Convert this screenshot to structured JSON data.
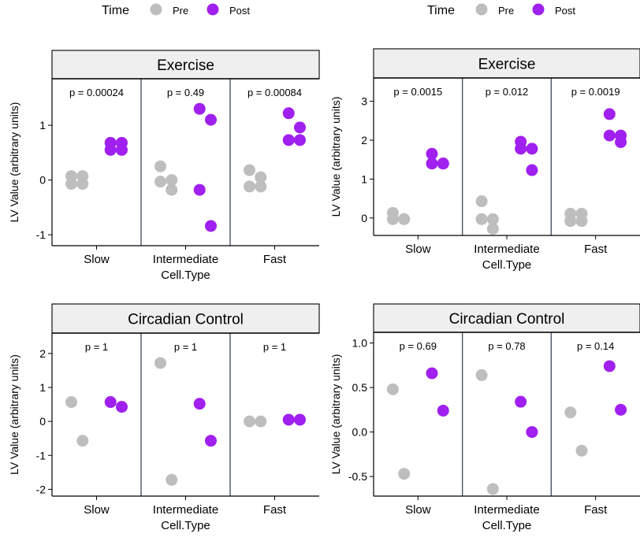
{
  "colors": {
    "pre": "#bebebe",
    "post": "#a020f0",
    "strip_fill": "#efefef",
    "divider": "#4a5568"
  },
  "chart_data": [
    {
      "type": "scatter",
      "title": "Exercise",
      "xlabel": "Cell.Type",
      "ylabel": "LV Value (arbitrary units)",
      "legend_title": "Time",
      "legend_labels": [
        "Pre",
        "Post"
      ],
      "legend_position": "top",
      "categories": [
        "Slow",
        "Intermediate",
        "Fast"
      ],
      "yticks": [
        "-1",
        "0",
        "1"
      ],
      "ytick_values": [
        -1,
        0,
        1
      ],
      "ylim": [
        -1.2,
        1.85
      ],
      "pvalues": [
        "p = 0.00024",
        "p = 0.49",
        "p = 0.00084"
      ],
      "series": [
        {
          "name": "Pre",
          "points": [
            {
              "x": "Slow",
              "y": 0.07
            },
            {
              "x": "Slow",
              "y": 0.07
            },
            {
              "x": "Slow",
              "y": -0.07
            },
            {
              "x": "Slow",
              "y": -0.07
            },
            {
              "x": "Intermediate",
              "y": 0.25
            },
            {
              "x": "Intermediate",
              "y": 0.0
            },
            {
              "x": "Intermediate",
              "y": -0.03
            },
            {
              "x": "Intermediate",
              "y": -0.18
            },
            {
              "x": "Fast",
              "y": 0.18
            },
            {
              "x": "Fast",
              "y": 0.05
            },
            {
              "x": "Fast",
              "y": -0.12
            },
            {
              "x": "Fast",
              "y": -0.12
            }
          ]
        },
        {
          "name": "Post",
          "points": [
            {
              "x": "Slow",
              "y": 0.68
            },
            {
              "x": "Slow",
              "y": 0.68
            },
            {
              "x": "Slow",
              "y": 0.55
            },
            {
              "x": "Slow",
              "y": 0.55
            },
            {
              "x": "Intermediate",
              "y": 1.3
            },
            {
              "x": "Intermediate",
              "y": 1.1
            },
            {
              "x": "Intermediate",
              "y": -0.18
            },
            {
              "x": "Intermediate",
              "y": -0.84
            },
            {
              "x": "Fast",
              "y": 1.22
            },
            {
              "x": "Fast",
              "y": 0.96
            },
            {
              "x": "Fast",
              "y": 0.73
            },
            {
              "x": "Fast",
              "y": 0.73
            }
          ]
        }
      ]
    },
    {
      "type": "scatter",
      "title": "Exercise",
      "xlabel": "Cell.Type",
      "ylabel": "LV Value (arbitrary units)",
      "legend_title": "Time",
      "legend_labels": [
        "Pre",
        "Post"
      ],
      "legend_position": "top",
      "categories": [
        "Slow",
        "Intermediate",
        "Fast"
      ],
      "yticks": [
        "0",
        "1",
        "2",
        "3"
      ],
      "ytick_values": [
        0,
        1,
        2,
        3
      ],
      "ylim": [
        -0.45,
        3.6
      ],
      "pvalues": [
        "p = 0.0015",
        "p = 0.012",
        "p = 0.0019"
      ],
      "series": [
        {
          "name": "Pre",
          "points": [
            {
              "x": "Slow",
              "y": 0.13
            },
            {
              "x": "Slow",
              "y": -0.03
            },
            {
              "x": "Slow",
              "y": -0.03
            },
            {
              "x": "Slow",
              "y": -0.03
            },
            {
              "x": "Intermediate",
              "y": 0.43
            },
            {
              "x": "Intermediate",
              "y": -0.03
            },
            {
              "x": "Intermediate",
              "y": -0.03
            },
            {
              "x": "Intermediate",
              "y": -0.28
            },
            {
              "x": "Fast",
              "y": 0.11
            },
            {
              "x": "Fast",
              "y": 0.11
            },
            {
              "x": "Fast",
              "y": -0.08
            },
            {
              "x": "Fast",
              "y": -0.08
            }
          ]
        },
        {
          "name": "Post",
          "points": [
            {
              "x": "Slow",
              "y": 1.65
            },
            {
              "x": "Slow",
              "y": 1.4
            },
            {
              "x": "Slow",
              "y": 1.4
            },
            {
              "x": "Slow",
              "y": 1.4
            },
            {
              "x": "Intermediate",
              "y": 1.96
            },
            {
              "x": "Intermediate",
              "y": 1.78
            },
            {
              "x": "Intermediate",
              "y": 1.78
            },
            {
              "x": "Intermediate",
              "y": 1.23
            },
            {
              "x": "Fast",
              "y": 2.67
            },
            {
              "x": "Fast",
              "y": 2.12
            },
            {
              "x": "Fast",
              "y": 2.12
            },
            {
              "x": "Fast",
              "y": 1.95
            }
          ]
        }
      ]
    },
    {
      "type": "scatter",
      "title": "Circadian Control",
      "xlabel": "Cell.Type",
      "ylabel": "LV Value (arbitrary units)",
      "categories": [
        "Slow",
        "Intermediate",
        "Fast"
      ],
      "yticks": [
        "-2",
        "-1",
        "0",
        "1",
        "2"
      ],
      "ytick_values": [
        -2,
        -1,
        0,
        1,
        2
      ],
      "ylim": [
        -2.2,
        2.6
      ],
      "pvalues": [
        "p = 1",
        "p = 1",
        "p = 1"
      ],
      "series": [
        {
          "name": "Pre",
          "points": [
            {
              "x": "Slow",
              "y": 0.57
            },
            {
              "x": "Slow",
              "y": -0.57
            },
            {
              "x": "Intermediate",
              "y": 1.72
            },
            {
              "x": "Intermediate",
              "y": -1.72
            },
            {
              "x": "Fast",
              "y": 0.0
            },
            {
              "x": "Fast",
              "y": 0.0
            }
          ]
        },
        {
          "name": "Post",
          "points": [
            {
              "x": "Slow",
              "y": 0.57
            },
            {
              "x": "Slow",
              "y": 0.43
            },
            {
              "x": "Intermediate",
              "y": 0.52
            },
            {
              "x": "Intermediate",
              "y": -0.57
            },
            {
              "x": "Fast",
              "y": 0.05
            },
            {
              "x": "Fast",
              "y": 0.05
            }
          ]
        }
      ]
    },
    {
      "type": "scatter",
      "title": "Circadian Control",
      "xlabel": "Cell.Type",
      "ylabel": "LV Value (arbitrary units)",
      "categories": [
        "Slow",
        "Intermediate",
        "Fast"
      ],
      "yticks": [
        "-0.5",
        "0.0",
        "0.5",
        "1.0"
      ],
      "ytick_values": [
        -0.5,
        0.0,
        0.5,
        1.0
      ],
      "ylim": [
        -0.72,
        1.12
      ],
      "pvalues": [
        "p = 0.69",
        "p = 0.78",
        "p = 0.14"
      ],
      "series": [
        {
          "name": "Pre",
          "points": [
            {
              "x": "Slow",
              "y": 0.48
            },
            {
              "x": "Slow",
              "y": -0.47
            },
            {
              "x": "Intermediate",
              "y": 0.64
            },
            {
              "x": "Intermediate",
              "y": -0.64
            },
            {
              "x": "Fast",
              "y": 0.22
            },
            {
              "x": "Fast",
              "y": -0.21
            }
          ]
        },
        {
          "name": "Post",
          "points": [
            {
              "x": "Slow",
              "y": 0.66
            },
            {
              "x": "Slow",
              "y": 0.24
            },
            {
              "x": "Intermediate",
              "y": 0.34
            },
            {
              "x": "Intermediate",
              "y": 0.0
            },
            {
              "x": "Fast",
              "y": 0.74
            },
            {
              "x": "Fast",
              "y": 0.25
            }
          ]
        }
      ]
    }
  ]
}
